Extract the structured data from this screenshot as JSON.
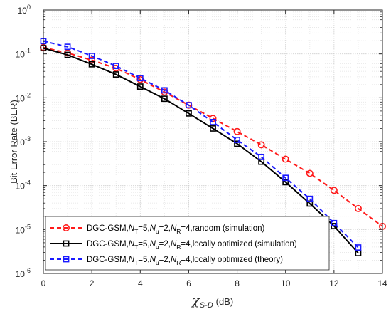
{
  "chart_data": {
    "type": "line",
    "xlim": [
      0,
      14
    ],
    "ylim": [
      1e-06,
      1
    ],
    "yscale": "log",
    "grid": true,
    "grid_minor": true,
    "legend_position": "bottom-left",
    "x_ticks": [
      0,
      2,
      4,
      6,
      8,
      10,
      12,
      14
    ],
    "x_tick_labels": [
      "0",
      "2",
      "4",
      "6",
      "8",
      "10",
      "12",
      "14"
    ],
    "y_ticks": [
      {
        "value": 1,
        "base": "10",
        "exp": "0"
      },
      {
        "value": 0.1,
        "base": "10",
        "exp": "-1"
      },
      {
        "value": 0.01,
        "base": "10",
        "exp": "-2"
      },
      {
        "value": 0.001,
        "base": "10",
        "exp": "-3"
      },
      {
        "value": 0.0001,
        "base": "10",
        "exp": "-4"
      },
      {
        "value": 1e-05,
        "base": "10",
        "exp": "-5"
      },
      {
        "value": 1e-06,
        "base": "10",
        "exp": "-6"
      }
    ],
    "ylabel": "Bit Error Rate (BER)",
    "xlabel": {
      "symbol": "χ",
      "subscript": "S-D",
      "unit": "(dB)"
    },
    "series": [
      {
        "name": "DGC-GSM,N_T=5,N_u=2,N_R=4,random (simulation)",
        "label_parts": [
          {
            "t": "DGC-GSM,"
          },
          {
            "t": "N",
            "i": true
          },
          {
            "t": "T",
            "sub": true
          },
          {
            "t": "=5,"
          },
          {
            "t": "N",
            "i": true
          },
          {
            "t": "u",
            "sub": true
          },
          {
            "t": "=2,"
          },
          {
            "t": "N",
            "i": true
          },
          {
            "t": "R",
            "sub": true
          },
          {
            "t": "=4,random (simulation)"
          }
        ],
        "color": "#ff1a1a",
        "line_style": "dashed",
        "marker": "circle",
        "x": [
          0,
          1,
          2,
          3,
          4,
          5,
          6,
          7,
          8,
          9,
          10,
          11,
          12,
          13,
          14
        ],
        "y": [
          0.14,
          0.105,
          0.072,
          0.047,
          0.026,
          0.0135,
          0.0068,
          0.0034,
          0.0017,
          0.00085,
          0.0004,
          0.00019,
          7.8e-05,
          3e-05,
          1.18e-05
        ]
      },
      {
        "name": "DGC-GSM,N_T=5,N_u=2,N_R=4,locally optimized (simulation)",
        "label_parts": [
          {
            "t": "DGC-GSM,"
          },
          {
            "t": "N",
            "i": true
          },
          {
            "t": "T",
            "sub": true
          },
          {
            "t": "=5,"
          },
          {
            "t": "N",
            "i": true
          },
          {
            "t": "u",
            "sub": true
          },
          {
            "t": "=2,"
          },
          {
            "t": "N",
            "i": true
          },
          {
            "t": "R",
            "sub": true
          },
          {
            "t": "=4,locally optimized (simulation)"
          }
        ],
        "color": "#000000",
        "line_style": "solid",
        "marker": "square",
        "x": [
          0,
          1,
          2,
          3,
          4,
          5,
          6,
          7,
          8,
          9,
          10,
          11,
          12,
          13
        ],
        "y": [
          0.135,
          0.095,
          0.058,
          0.034,
          0.018,
          0.0095,
          0.0044,
          0.002,
          0.0009,
          0.00035,
          0.00012,
          3.9e-05,
          1.2e-05,
          2.9e-06
        ]
      },
      {
        "name": "DGC-GSM,N_T=5,N_u=2,N_R=4,locally optimized (theory)",
        "label_parts": [
          {
            "t": "DGC-GSM,"
          },
          {
            "t": "N",
            "i": true
          },
          {
            "t": "T",
            "sub": true
          },
          {
            "t": "=5,"
          },
          {
            "t": "N",
            "i": true
          },
          {
            "t": "u",
            "sub": true
          },
          {
            "t": "=2,"
          },
          {
            "t": "N",
            "i": true
          },
          {
            "t": "R",
            "sub": true
          },
          {
            "t": "=4,locally optimized (theory)"
          }
        ],
        "color": "#1a1aff",
        "line_style": "dashed",
        "marker": "square",
        "x": [
          0,
          1,
          2,
          3,
          4,
          5,
          6,
          7,
          8,
          9,
          10,
          11,
          12,
          13
        ],
        "y": [
          0.195,
          0.145,
          0.09,
          0.053,
          0.028,
          0.0148,
          0.0068,
          0.0028,
          0.0011,
          0.00045,
          0.00015,
          5e-05,
          1.4e-05,
          3.9e-06
        ]
      }
    ]
  }
}
